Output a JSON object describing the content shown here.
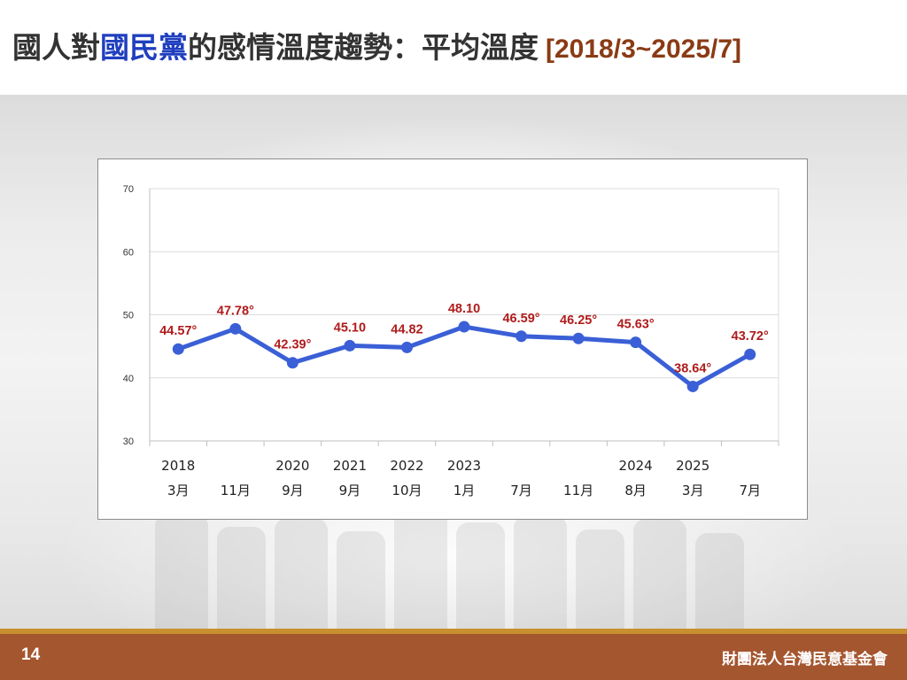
{
  "header": {
    "title_part1": "國人對",
    "title_part2": "國民黨",
    "title_part3": "的感情溫度趨勢：平均溫度",
    "title_range": "[2018/3~2025/7]",
    "colors": {
      "title": "#333333",
      "highlight": "#1f3fbf",
      "range": "#8a3b14"
    }
  },
  "chart_data": {
    "type": "line",
    "title": "",
    "xlabel": "",
    "ylabel": "",
    "ylim": [
      30,
      70
    ],
    "yticks": [
      "30",
      "40",
      "50",
      "60",
      "70"
    ],
    "grid": true,
    "legend": "none",
    "categories": [
      {
        "year": "2018",
        "month": "3月"
      },
      {
        "year": "",
        "month": "11月"
      },
      {
        "year": "2020",
        "month": "9月"
      },
      {
        "year": "2021",
        "month": "9月"
      },
      {
        "year": "2022",
        "month": "10月"
      },
      {
        "year": "2023",
        "month": "1月"
      },
      {
        "year": "",
        "month": "7月"
      },
      {
        "year": "",
        "month": "11月"
      },
      {
        "year": "2024",
        "month": "8月"
      },
      {
        "year": "2025",
        "month": "3月"
      },
      {
        "year": "",
        "month": "7月"
      }
    ],
    "series": [
      {
        "values": [
          44.57,
          47.78,
          42.39,
          45.1,
          44.82,
          48.1,
          46.59,
          46.25,
          45.63,
          38.64,
          43.72
        ],
        "labels": [
          "44.57°",
          "47.78°",
          "42.39°",
          "45.10",
          "44.82",
          "48.10",
          "46.59°",
          "46.25°",
          "45.63°",
          "38.64°",
          "43.72°"
        ],
        "color": "#3a5fd6",
        "label_color": "#b01b1b"
      }
    ]
  },
  "footer": {
    "page_number": "14",
    "organization": "財團法人台灣民意基金會",
    "bar_color": "#a4562f",
    "accent_color": "#c8902e"
  }
}
